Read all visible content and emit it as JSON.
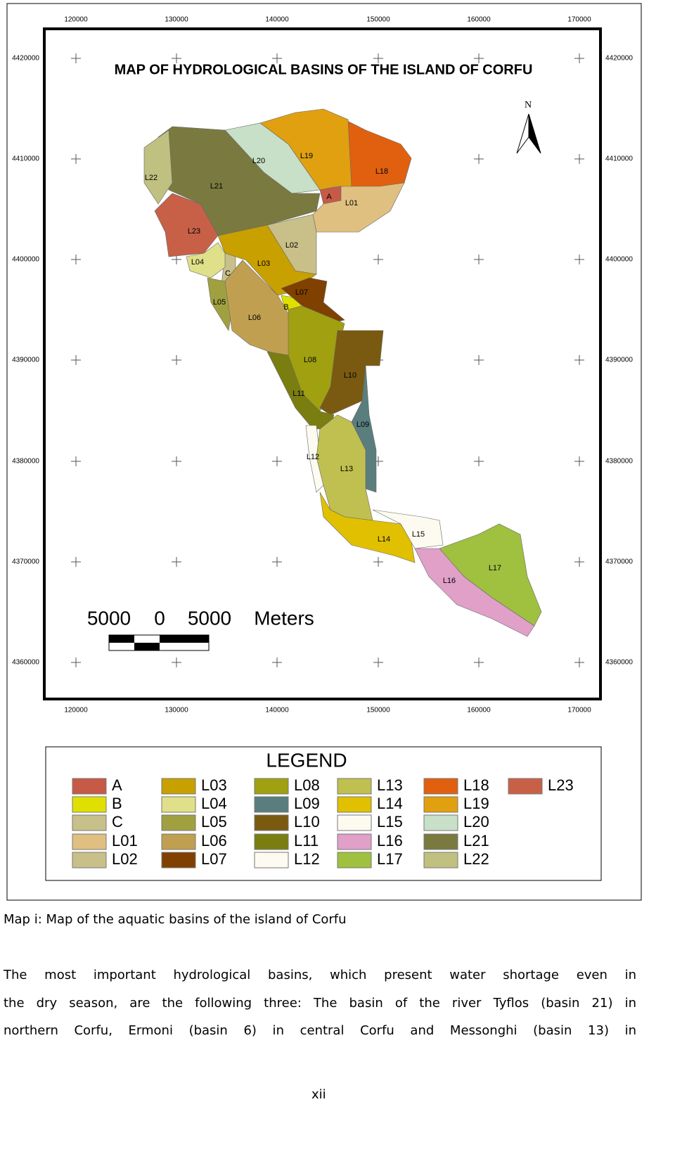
{
  "map": {
    "title": "MAP OF HYDROLOGICAL BASINS OF THE ISLAND OF CORFU",
    "north": "N",
    "x_labels": [
      "120000",
      "130000",
      "140000",
      "150000",
      "160000",
      "170000"
    ],
    "y_labels": [
      "4420000",
      "4410000",
      "4400000",
      "4390000",
      "4380000",
      "4370000",
      "4360000"
    ],
    "scale_bar": [
      "5000",
      "0",
      "5000",
      "Meters"
    ],
    "legend_title": "LEGEND",
    "basins": [
      {
        "label": "A",
        "color": "#c65a46"
      },
      {
        "label": "B",
        "color": "#e0e000"
      },
      {
        "label": "C",
        "color": "#c8c08a"
      },
      {
        "label": "L01",
        "color": "#e0c080"
      },
      {
        "label": "L02",
        "color": "#c8c088"
      },
      {
        "label": "L03",
        "color": "#c8a000"
      },
      {
        "label": "L04",
        "color": "#e0e08a"
      },
      {
        "label": "L05",
        "color": "#a0a040"
      },
      {
        "label": "L06",
        "color": "#c0a050"
      },
      {
        "label": "L07",
        "color": "#804000"
      },
      {
        "label": "L08",
        "color": "#a0a010"
      },
      {
        "label": "L09",
        "color": "#5a7e7e"
      },
      {
        "label": "L10",
        "color": "#7a5a10"
      },
      {
        "label": "L11",
        "color": "#7a7e10"
      },
      {
        "label": "L12",
        "color": "#fdfbf0"
      },
      {
        "label": "L13",
        "color": "#c0c050"
      },
      {
        "label": "L14",
        "color": "#e0c000"
      },
      {
        "label": "L15",
        "color": "#fdfbf0"
      },
      {
        "label": "L16",
        "color": "#e0a0c8"
      },
      {
        "label": "L17",
        "color": "#a0c040"
      },
      {
        "label": "L18",
        "color": "#e06010"
      },
      {
        "label": "L19",
        "color": "#e0a010"
      },
      {
        "label": "L20",
        "color": "#c8e0c8"
      },
      {
        "label": "L21",
        "color": "#7a7a40"
      },
      {
        "label": "L22",
        "color": "#c0c080"
      },
      {
        "label": "L23",
        "color": "#c86048"
      }
    ]
  },
  "caption": "Map i: Map of the aquatic basins of the island of Corfu",
  "paragraph": [
    "The most important hydrological basins, which present water shortage even in",
    "the dry season, are the following three: The basin of the river Tyflos (basin 21) in",
    "northern Corfu, Ermoni (basin 6) in central Corfu and Messonghi (basin 13) in"
  ],
  "page_number": "xii"
}
